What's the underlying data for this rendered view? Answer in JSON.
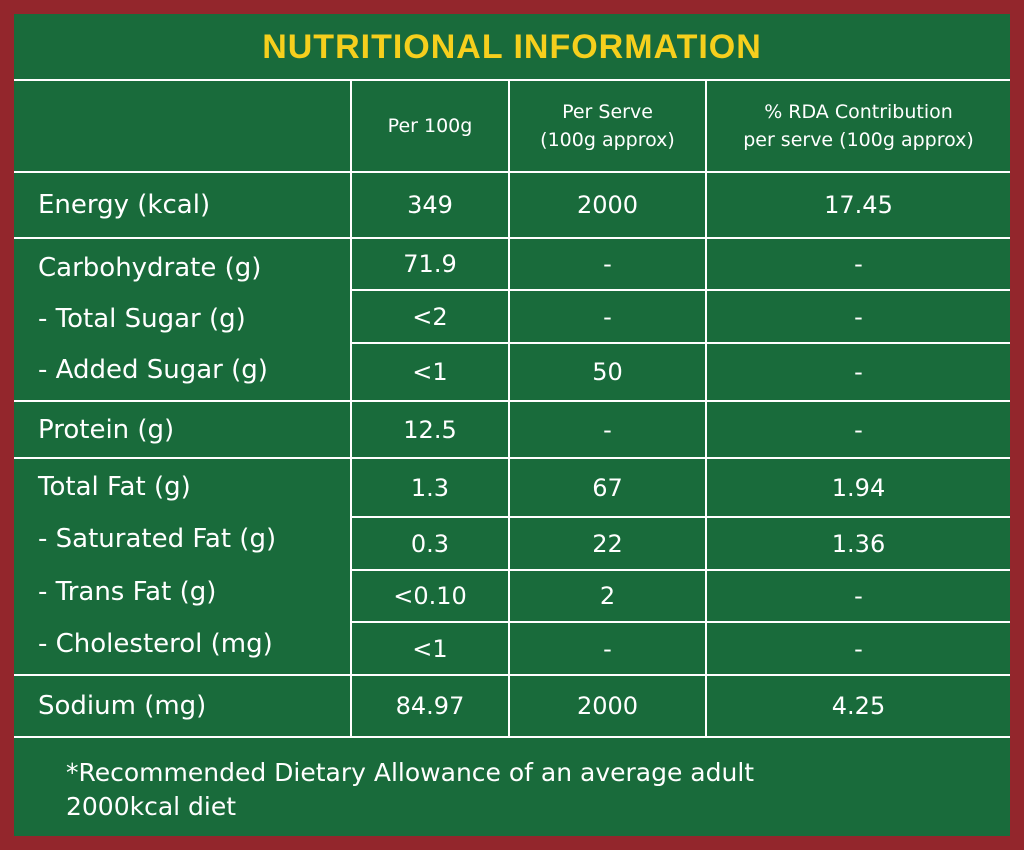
{
  "title": "NUTRITIONAL INFORMATION",
  "colors": {
    "border": "#93262c",
    "background": "#196b3b",
    "title": "#f6cf1d",
    "text": "#ffffff"
  },
  "header": {
    "per100g": "Per 100g",
    "per_serve": "Per Serve\n(100g approx)",
    "rda": "% RDA Contribution\nper serve (100g approx)"
  },
  "rows": {
    "energy": {
      "label": "Energy (kcal)",
      "per100g": "349",
      "per_serve": "2000",
      "rda": "17.45"
    },
    "carbohydrate": {
      "label": "Carbohydrate (g)",
      "per100g": "71.9",
      "per_serve": "-",
      "rda": "-"
    },
    "total_sugar": {
      "label": "- Total Sugar (g)",
      "per100g": "<2",
      "per_serve": "-",
      "rda": "-"
    },
    "added_sugar": {
      "label": "- Added Sugar (g)",
      "per100g": "<1",
      "per_serve": "50",
      "rda": "-"
    },
    "protein": {
      "label": "Protein (g)",
      "per100g": "12.5",
      "per_serve": "-",
      "rda": "-"
    },
    "total_fat": {
      "label": "Total Fat (g)",
      "per100g": "1.3",
      "per_serve": "67",
      "rda": "1.94"
    },
    "saturated_fat": {
      "label": "- Saturated Fat (g)",
      "per100g": "0.3",
      "per_serve": "22",
      "rda": "1.36"
    },
    "trans_fat": {
      "label": "- Trans Fat (g)",
      "per100g": "<0.10",
      "per_serve": "2",
      "rda": "-"
    },
    "cholesterol": {
      "label": "- Cholesterol (mg)",
      "per100g": "<1",
      "per_serve": "-",
      "rda": "-"
    },
    "sodium": {
      "label": "Sodium (mg)",
      "per100g": "84.97",
      "per_serve": "2000",
      "rda": "4.25"
    }
  },
  "footnote": "*Recommended Dietary Allowance of an average adult\n 2000kcal diet"
}
